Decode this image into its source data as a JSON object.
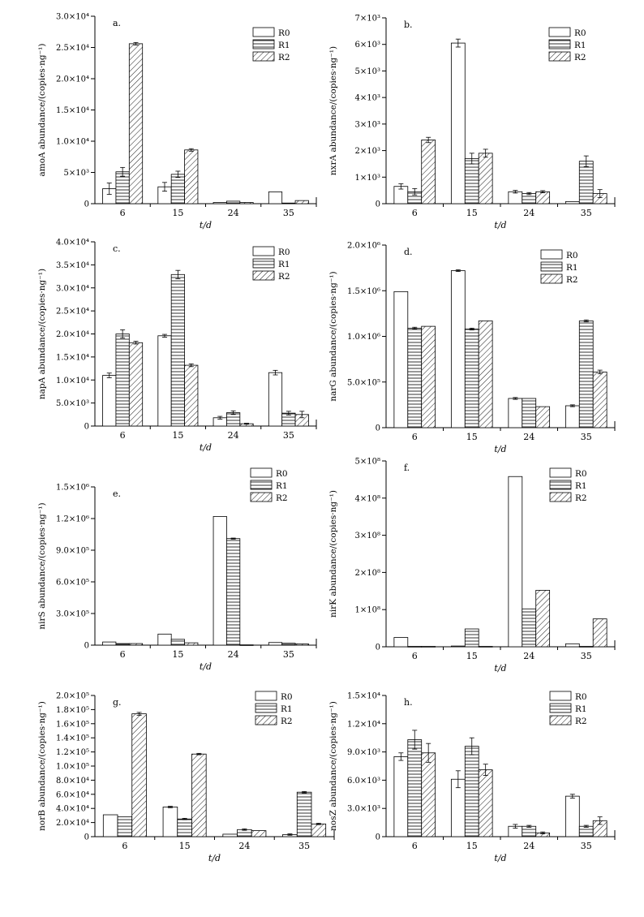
{
  "xlabel": "t/d",
  "legend": [
    "R0",
    "R1",
    "R2"
  ],
  "chart_data": [
    {
      "type": "bar",
      "panel": "a.",
      "gene": "amoA",
      "ylabel": "amoA abundance/(copies·ng⁻¹)",
      "ylim": [
        0,
        30000
      ],
      "yticks": [
        {
          "v": 0,
          "l": "0"
        },
        {
          "v": 5000,
          "l": "5×10³"
        },
        {
          "v": 10000,
          "l": "1.0×10⁴"
        },
        {
          "v": 15000,
          "l": "1.5×10⁴"
        },
        {
          "v": 20000,
          "l": "2.0×10⁴"
        },
        {
          "v": 25000,
          "l": "2.5×10⁴"
        },
        {
          "v": 30000,
          "l": "3.0×10⁴"
        }
      ],
      "categories": [
        "6",
        "15",
        "24",
        "35"
      ],
      "series": [
        {
          "name": "R0",
          "values": [
            2400,
            2700,
            200,
            1900
          ],
          "errors": [
            900,
            700,
            0,
            0
          ]
        },
        {
          "name": "R1",
          "values": [
            5100,
            4700,
            400,
            100
          ],
          "errors": [
            700,
            500,
            0,
            0
          ]
        },
        {
          "name": "R2",
          "values": [
            25600,
            8600,
            200,
            500
          ],
          "errors": [
            200,
            200,
            0,
            0
          ]
        }
      ]
    },
    {
      "type": "bar",
      "panel": "b.",
      "gene": "nxrA",
      "ylabel": "nxrA abundance/(copies·ng⁻¹)",
      "ylim": [
        0,
        7000
      ],
      "yticks": [
        {
          "v": 0,
          "l": "0"
        },
        {
          "v": 1000,
          "l": "1×10³"
        },
        {
          "v": 2000,
          "l": "2×10³"
        },
        {
          "v": 3000,
          "l": "3×10³"
        },
        {
          "v": 4000,
          "l": "4×10³"
        },
        {
          "v": 5000,
          "l": "5×10³"
        },
        {
          "v": 6000,
          "l": "6×10³"
        },
        {
          "v": 7000,
          "l": "7×10³"
        }
      ],
      "categories": [
        "6",
        "15",
        "24",
        "35"
      ],
      "series": [
        {
          "name": "R0",
          "values": [
            650,
            6050,
            450,
            80
          ],
          "errors": [
            100,
            150,
            50,
            0
          ]
        },
        {
          "name": "R1",
          "values": [
            450,
            1700,
            380,
            1600
          ],
          "errors": [
            120,
            200,
            40,
            200
          ]
        },
        {
          "name": "R2",
          "values": [
            2400,
            1900,
            450,
            380
          ],
          "errors": [
            100,
            150,
            40,
            150
          ]
        }
      ]
    },
    {
      "type": "bar",
      "panel": "c.",
      "gene": "napA",
      "ylabel": "napA abundance/(copies·ng⁻¹)",
      "ylim": [
        0,
        40000
      ],
      "yticks": [
        {
          "v": 0,
          "l": "0"
        },
        {
          "v": 5000,
          "l": "5.0×10³"
        },
        {
          "v": 10000,
          "l": "1.0×10⁴"
        },
        {
          "v": 15000,
          "l": "1.5×10⁴"
        },
        {
          "v": 20000,
          "l": "2.0×10⁴"
        },
        {
          "v": 25000,
          "l": "2.5×10⁴"
        },
        {
          "v": 30000,
          "l": "3.0×10⁴"
        },
        {
          "v": 35000,
          "l": "3.5×10⁴"
        },
        {
          "v": 40000,
          "l": "4.0×10⁴"
        }
      ],
      "categories": [
        "6",
        "15",
        "24",
        "35"
      ],
      "series": [
        {
          "name": "R0",
          "values": [
            11000,
            19600,
            1800,
            11600
          ],
          "errors": [
            500,
            300,
            300,
            500
          ]
        },
        {
          "name": "R1",
          "values": [
            20000,
            32900,
            2900,
            2800
          ],
          "errors": [
            900,
            900,
            400,
            400
          ]
        },
        {
          "name": "R2",
          "values": [
            18100,
            13200,
            500,
            2500
          ],
          "errors": [
            300,
            300,
            100,
            700
          ]
        }
      ]
    },
    {
      "type": "bar",
      "panel": "d.",
      "gene": "narG",
      "ylabel": "narG abundance/(copies·ng⁻¹)",
      "ylim": [
        0,
        2000000
      ],
      "yticks": [
        {
          "v": 0,
          "l": "0"
        },
        {
          "v": 500000,
          "l": "5.0×10⁵"
        },
        {
          "v": 1000000,
          "l": "1.0×10⁶"
        },
        {
          "v": 1500000,
          "l": "1.5×10⁶"
        },
        {
          "v": 2000000,
          "l": "2.0×10⁶"
        }
      ],
      "categories": [
        "6",
        "15",
        "24",
        "35"
      ],
      "series": [
        {
          "name": "R0",
          "values": [
            1490000,
            1720000,
            320000,
            240000
          ],
          "errors": [
            0,
            10000,
            10000,
            10000
          ]
        },
        {
          "name": "R1",
          "values": [
            1090000,
            1080000,
            320000,
            1170000
          ],
          "errors": [
            10000,
            10000,
            0,
            10000
          ]
        },
        {
          "name": "R2",
          "values": [
            1110000,
            1170000,
            230000,
            610000
          ],
          "errors": [
            0,
            0,
            0,
            20000
          ]
        }
      ]
    },
    {
      "type": "bar",
      "panel": "e.",
      "gene": "nirS",
      "ylabel": "nirS abundance/(copies·ng⁻¹)",
      "ylim": [
        0,
        1500000
      ],
      "yticks": [
        {
          "v": 0,
          "l": "0"
        },
        {
          "v": 300000,
          "l": "3.0×10⁵"
        },
        {
          "v": 600000,
          "l": "6.0×10⁵"
        },
        {
          "v": 900000,
          "l": "9.0×10⁵"
        },
        {
          "v": 1200000,
          "l": "1.2×10⁶"
        },
        {
          "v": 1500000,
          "l": "1.5×10⁶"
        }
      ],
      "categories": [
        "6",
        "15",
        "24",
        "35"
      ],
      "series": [
        {
          "name": "R0",
          "values": [
            30000,
            105000,
            1220000,
            25000
          ],
          "errors": [
            0,
            0,
            0,
            0
          ]
        },
        {
          "name": "R1",
          "values": [
            15000,
            55000,
            1010000,
            18000
          ],
          "errors": [
            0,
            0,
            5000,
            0
          ]
        },
        {
          "name": "R2",
          "values": [
            15000,
            22000,
            3000,
            12000
          ],
          "errors": [
            0,
            0,
            0,
            0
          ]
        }
      ]
    },
    {
      "type": "bar",
      "panel": "f.",
      "gene": "nirK",
      "ylabel": "nirK abundance/(copies·ng⁻¹)",
      "ylim": [
        0,
        500000000
      ],
      "yticks": [
        {
          "v": 0,
          "l": "0"
        },
        {
          "v": 100000000,
          "l": "1×10⁸"
        },
        {
          "v": 200000000,
          "l": "2×10⁸"
        },
        {
          "v": 300000000,
          "l": "3×10⁸"
        },
        {
          "v": 400000000,
          "l": "4×10⁸"
        },
        {
          "v": 500000000,
          "l": "5×10⁸"
        }
      ],
      "categories": [
        "6",
        "15",
        "24",
        "35"
      ],
      "series": [
        {
          "name": "R0",
          "values": [
            25000000,
            2000000,
            458000000,
            8000000
          ],
          "errors": [
            0,
            0,
            0,
            0
          ]
        },
        {
          "name": "R1",
          "values": [
            1000000,
            48000000,
            102000000,
            1000000
          ],
          "errors": [
            0,
            0,
            0,
            0
          ]
        },
        {
          "name": "R2",
          "values": [
            1000000,
            1000000,
            152000000,
            75000000
          ],
          "errors": [
            0,
            0,
            0,
            0
          ]
        }
      ]
    },
    {
      "type": "bar",
      "panel": "g.",
      "gene": "norB",
      "ylabel": "norB abundance/(copies·ng⁻¹)",
      "ylim": [
        0,
        200000
      ],
      "yticks": [
        {
          "v": 0,
          "l": "0"
        },
        {
          "v": 20000,
          "l": "2.0×10⁴"
        },
        {
          "v": 40000,
          "l": "4.0×10⁴"
        },
        {
          "v": 60000,
          "l": "6.0×10⁴"
        },
        {
          "v": 80000,
          "l": "8.0×10⁴"
        },
        {
          "v": 100000,
          "l": "1.0×10⁵"
        },
        {
          "v": 120000,
          "l": "1.2×10⁵"
        },
        {
          "v": 140000,
          "l": "1.4×10⁵"
        },
        {
          "v": 160000,
          "l": "1.6×10⁵"
        },
        {
          "v": 180000,
          "l": "1.8×10⁵"
        },
        {
          "v": 200000,
          "l": "2.0×10⁵"
        }
      ],
      "categories": [
        "6",
        "15",
        "24",
        "35"
      ],
      "series": [
        {
          "name": "R0",
          "values": [
            31000,
            42000,
            3500,
            3000
          ],
          "errors": [
            0,
            1000,
            0,
            1000
          ]
        },
        {
          "name": "R1",
          "values": [
            28000,
            25000,
            10000,
            63000
          ],
          "errors": [
            0,
            1000,
            1000,
            1000
          ]
        },
        {
          "name": "R2",
          "values": [
            174000,
            117000,
            8500,
            18000
          ],
          "errors": [
            2000,
            1000,
            0,
            1000
          ]
        }
      ]
    },
    {
      "type": "bar",
      "panel": "h.",
      "gene": "nosZ",
      "ylabel": "nosZ abundance/(copies·ng⁻¹)",
      "ylim": [
        0,
        15000
      ],
      "yticks": [
        {
          "v": 0,
          "l": "0"
        },
        {
          "v": 3000,
          "l": "3.0×10³"
        },
        {
          "v": 6000,
          "l": "6.0×10³"
        },
        {
          "v": 9000,
          "l": "9.0×10³"
        },
        {
          "v": 12000,
          "l": "1.2×10⁴"
        },
        {
          "v": 15000,
          "l": "1.5×10⁴"
        }
      ],
      "categories": [
        "6",
        "15",
        "24",
        "35"
      ],
      "series": [
        {
          "name": "R0",
          "values": [
            8500,
            6100,
            1100,
            4300
          ],
          "errors": [
            400,
            900,
            200,
            200
          ]
        },
        {
          "name": "R1",
          "values": [
            10300,
            9600,
            1100,
            1100
          ],
          "errors": [
            1000,
            900,
            100,
            100
          ]
        },
        {
          "name": "R2",
          "values": [
            8900,
            7100,
            400,
            1700
          ],
          "errors": [
            1000,
            600,
            100,
            400
          ]
        }
      ]
    }
  ]
}
